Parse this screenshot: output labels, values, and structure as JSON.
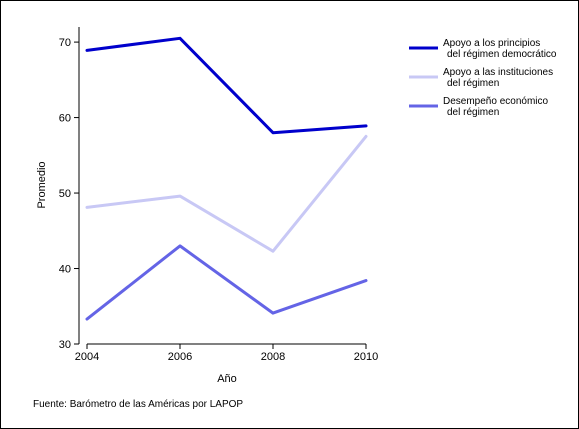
{
  "chart_data": {
    "type": "line",
    "x": [
      2004,
      2006,
      2008,
      2010
    ],
    "series": [
      {
        "name": "Apoyo a los principios del régimen democrático",
        "legend_lines": [
          "Apoyo a los principios",
          "del régimen democrático"
        ],
        "color": "#0000CC",
        "values": [
          68.9,
          70.5,
          58.0,
          58.9
        ]
      },
      {
        "name": "Apoyo a las instituciones del régimen",
        "legend_lines": [
          "Apoyo a las instituciones",
          "del régimen"
        ],
        "color": "#C8C8F5",
        "values": [
          48.1,
          49.6,
          42.3,
          57.5
        ]
      },
      {
        "name": "Desempeño económico del régimen",
        "legend_lines": [
          "Desempeño económico",
          "del régimen"
        ],
        "color": "#6464E6",
        "values": [
          33.3,
          43.0,
          34.1,
          38.4
        ]
      }
    ],
    "xlabel": "Año",
    "ylabel": "Promedio",
    "xlim": [
      2004,
      2010
    ],
    "ylim": [
      30,
      72
    ],
    "xticks": [
      "2004",
      "2006",
      "2008",
      "2010"
    ],
    "yticks": [
      "30",
      "40",
      "50",
      "60",
      "70"
    ],
    "grid": false,
    "legend_position": "right"
  },
  "source_note": "Fuente: Barómetro de las Américas por LAPOP"
}
